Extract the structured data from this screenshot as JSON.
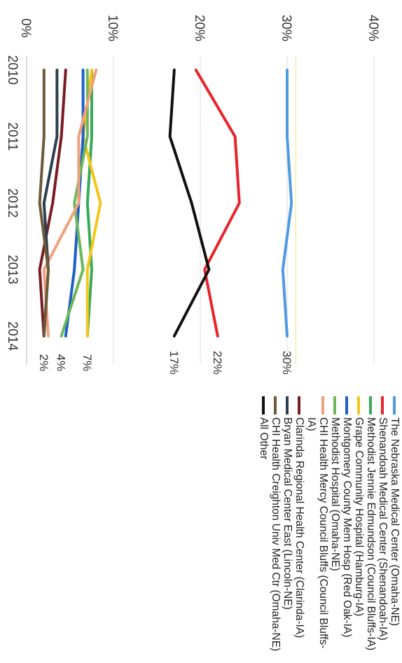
{
  "chart_data": {
    "type": "line",
    "x": [
      "2010",
      "2011",
      "2012",
      "2013",
      "2014"
    ],
    "ylim": [
      0,
      40
    ],
    "yticks": [
      "0%",
      "10%",
      "20%",
      "30%",
      "40%"
    ],
    "grid": true,
    "legend_position": "right",
    "series": [
      {
        "name": "The Nebraska Medical Center (Omaha-NE)",
        "color": "#4f9be2",
        "values": [
          30,
          30,
          30.5,
          29.5,
          30
        ],
        "end_label": "30%"
      },
      {
        "name": "Shenandoah Medical Center (Shenandoah-IA)",
        "color": "#e8242c",
        "values": [
          19.5,
          24,
          24.5,
          20.5,
          22
        ],
        "end_label": "22%"
      },
      {
        "name": "Methodist Jennie Edmundson (Council Bluffs-IA)",
        "color": "#3aaa5a",
        "values": [
          7.5,
          7.5,
          7,
          7.5,
          7
        ],
        "end_label": ""
      },
      {
        "name": "Grape Community Hospital (Hamburg-IA)",
        "color": "#f5c518",
        "values": [
          7.5,
          6.5,
          8.5,
          7,
          7
        ],
        "end_label": "7%"
      },
      {
        "name": "Montgomery County Mem Hosp (Red Oak-IA)",
        "color": "#1f5fc7",
        "values": [
          6.5,
          6.5,
          6,
          5.5,
          4.5
        ],
        "end_label": ""
      },
      {
        "name": "Methodist Hospital (Omaha-NE)",
        "color": "#6cb75a",
        "values": [
          7,
          7,
          5.5,
          6.5,
          4
        ],
        "end_label": "4%"
      },
      {
        "name": "CHI Health Mercy Council Bluffs (Council Bluffs-IA)",
        "color": "#f2a07b",
        "values": [
          8,
          6,
          6,
          2,
          2.5
        ],
        "end_label": ""
      },
      {
        "name": "Clarinda Regional Health Center (Clarinda-IA)",
        "color": "#7a1c24",
        "values": [
          4.5,
          4,
          3,
          1.5,
          2
        ],
        "end_label": ""
      },
      {
        "name": "Bryan Medical Center East (Lincoln-NE)",
        "color": "#2b3f4c",
        "values": [
          3.5,
          3.5,
          2,
          2.5,
          2
        ],
        "end_label": "2%"
      },
      {
        "name": "CHI Health Creighton Univ Med Ctr (Omaha-NE)",
        "color": "#6b5a3a",
        "values": [
          2,
          2,
          1.5,
          2.5,
          2
        ],
        "end_label": ""
      },
      {
        "name": "All Other",
        "color": "#111111",
        "values": [
          17,
          16.5,
          19,
          21,
          17
        ],
        "end_label": "17%"
      }
    ]
  }
}
